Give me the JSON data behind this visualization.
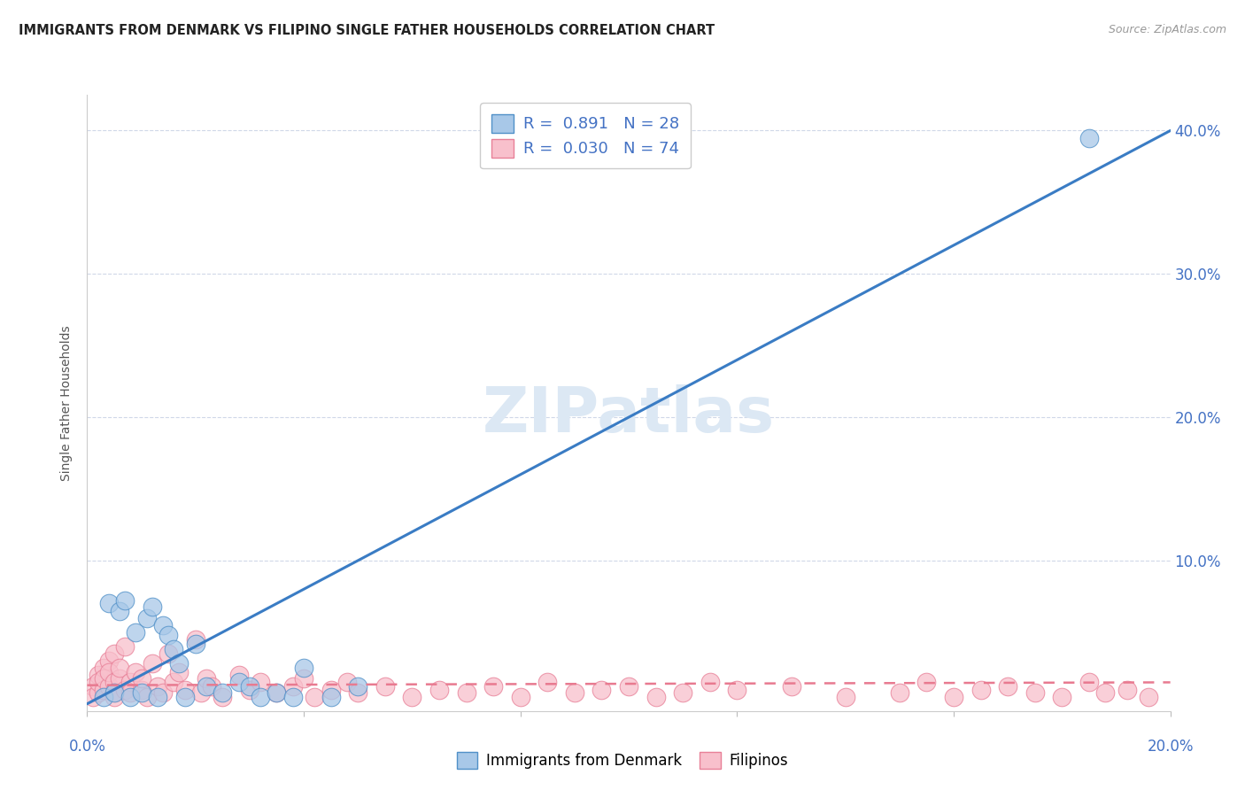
{
  "title": "IMMIGRANTS FROM DENMARK VS FILIPINO SINGLE FATHER HOUSEHOLDS CORRELATION CHART",
  "source": "Source: ZipAtlas.com",
  "ylabel": "Single Father Households",
  "yticks": [
    "10.0%",
    "20.0%",
    "30.0%",
    "40.0%"
  ],
  "ytick_vals": [
    0.1,
    0.2,
    0.3,
    0.4
  ],
  "xlim": [
    0.0,
    0.2
  ],
  "ylim": [
    -0.005,
    0.425
  ],
  "legend1_R": "0.891",
  "legend1_N": "28",
  "legend2_R": "0.030",
  "legend2_N": "74",
  "blue_fill": "#a8c8e8",
  "pink_fill": "#f8c0cc",
  "blue_edge": "#5090c8",
  "pink_edge": "#e88098",
  "blue_line_color": "#3a7cc4",
  "pink_line_color": "#e87a90",
  "title_fontsize": 10.5,
  "source_fontsize": 9,
  "tick_label_color": "#4472c4",
  "grid_color": "#d0d8e8",
  "background_color": "#ffffff",
  "blue_trend_x0": 0.0,
  "blue_trend_y0": 0.0,
  "blue_trend_x1": 0.2,
  "blue_trend_y1": 0.4,
  "pink_trend_x0": 0.0,
  "pink_trend_y0": 0.013,
  "pink_trend_x1": 0.2,
  "pink_trend_y1": 0.015,
  "blue_scatter_x": [
    0.003,
    0.004,
    0.005,
    0.006,
    0.007,
    0.008,
    0.009,
    0.01,
    0.011,
    0.012,
    0.013,
    0.014,
    0.015,
    0.016,
    0.017,
    0.018,
    0.02,
    0.022,
    0.025,
    0.028,
    0.03,
    0.032,
    0.035,
    0.038,
    0.04,
    0.045,
    0.05,
    0.185
  ],
  "blue_scatter_y": [
    0.005,
    0.07,
    0.008,
    0.065,
    0.072,
    0.005,
    0.05,
    0.008,
    0.06,
    0.068,
    0.005,
    0.055,
    0.048,
    0.038,
    0.028,
    0.005,
    0.042,
    0.012,
    0.008,
    0.015,
    0.012,
    0.005,
    0.008,
    0.005,
    0.025,
    0.005,
    0.012,
    0.395
  ],
  "pink_scatter_x": [
    0.001,
    0.001,
    0.002,
    0.002,
    0.002,
    0.003,
    0.003,
    0.003,
    0.004,
    0.004,
    0.004,
    0.005,
    0.005,
    0.005,
    0.005,
    0.006,
    0.006,
    0.007,
    0.007,
    0.008,
    0.008,
    0.009,
    0.01,
    0.01,
    0.011,
    0.012,
    0.013,
    0.014,
    0.015,
    0.016,
    0.017,
    0.018,
    0.02,
    0.021,
    0.022,
    0.023,
    0.025,
    0.028,
    0.03,
    0.032,
    0.035,
    0.038,
    0.04,
    0.042,
    0.045,
    0.048,
    0.05,
    0.055,
    0.06,
    0.065,
    0.07,
    0.075,
    0.08,
    0.085,
    0.09,
    0.095,
    0.1,
    0.105,
    0.11,
    0.115,
    0.12,
    0.13,
    0.14,
    0.15,
    0.155,
    0.16,
    0.165,
    0.17,
    0.175,
    0.18,
    0.185,
    0.188,
    0.192,
    0.196
  ],
  "pink_scatter_y": [
    0.012,
    0.005,
    0.02,
    0.008,
    0.015,
    0.025,
    0.01,
    0.018,
    0.03,
    0.012,
    0.022,
    0.015,
    0.008,
    0.035,
    0.005,
    0.018,
    0.025,
    0.01,
    0.04,
    0.015,
    0.008,
    0.022,
    0.01,
    0.018,
    0.005,
    0.028,
    0.012,
    0.008,
    0.035,
    0.015,
    0.022,
    0.01,
    0.045,
    0.008,
    0.018,
    0.012,
    0.005,
    0.02,
    0.01,
    0.015,
    0.008,
    0.012,
    0.018,
    0.005,
    0.01,
    0.015,
    0.008,
    0.012,
    0.005,
    0.01,
    0.008,
    0.012,
    0.005,
    0.015,
    0.008,
    0.01,
    0.012,
    0.005,
    0.008,
    0.015,
    0.01,
    0.012,
    0.005,
    0.008,
    0.015,
    0.005,
    0.01,
    0.012,
    0.008,
    0.005,
    0.015,
    0.008,
    0.01,
    0.005
  ]
}
